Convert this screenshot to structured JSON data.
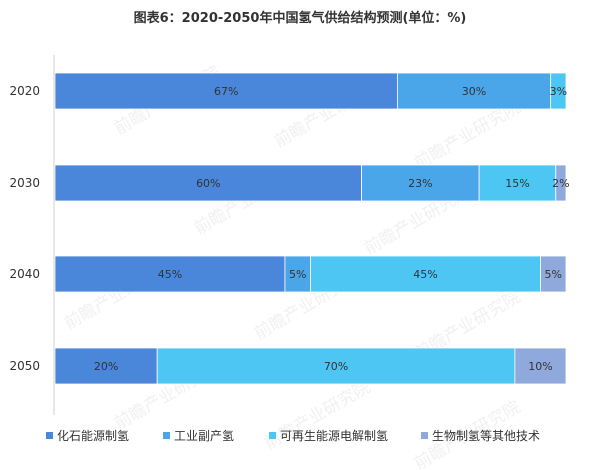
{
  "chart_data": {
    "type": "bar",
    "orientation": "horizontal",
    "stacked": true,
    "title": "图表6：2020-2050年中国氢气供给结构预测(单位：%)",
    "categories": [
      "2020",
      "2030",
      "2040",
      "2050"
    ],
    "unit": "%",
    "series": [
      {
        "name": "化石能源制氢",
        "color": "#4a86d9",
        "values": [
          67,
          60,
          45,
          20
        ]
      },
      {
        "name": "工业副产氢",
        "color": "#4aa6e8",
        "values": [
          30,
          23,
          5,
          0
        ]
      },
      {
        "name": "可再生能源电解制氢",
        "color": "#4dc6f3",
        "values": [
          3,
          15,
          45,
          70
        ]
      },
      {
        "name": "生物制氢等其他技术",
        "color": "#8fa9dc",
        "values": [
          0,
          2,
          5,
          10
        ]
      }
    ],
    "legend_position": "bottom",
    "grid": false
  },
  "watermark": "前瞻产业研究院"
}
